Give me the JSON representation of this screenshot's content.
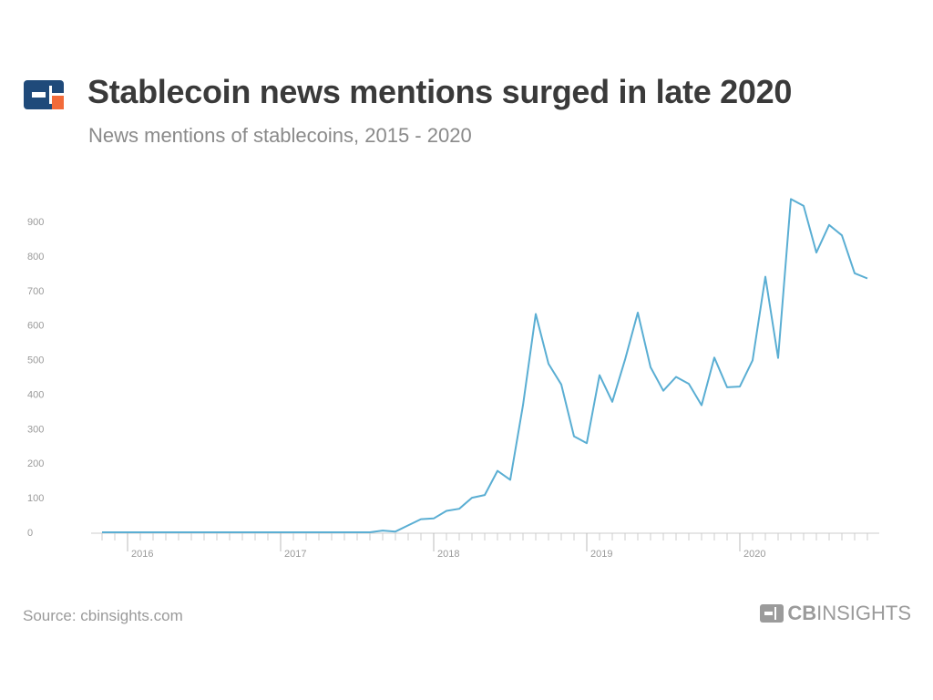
{
  "header": {
    "title": "Stablecoin news mentions surged in late 2020",
    "subtitle": "News mentions of stablecoins, 2015 - 2020",
    "logo_icon": "cb-insights-logo-icon",
    "logo_colors": {
      "primary": "#1f4a7a",
      "accent": "#f26b3a"
    }
  },
  "footer": {
    "source": "Source: cbinsights.com",
    "brand_cb": "CB",
    "brand_insights": "INSIGHTS"
  },
  "chart_data": {
    "type": "line",
    "title": "Stablecoin news mentions surged in late 2020",
    "subtitle": "News mentions of stablecoins, 2015 - 2020",
    "xlabel": "",
    "ylabel": "",
    "ylim": [
      0,
      950
    ],
    "yticks": [
      0,
      100,
      200,
      300,
      400,
      500,
      600,
      700,
      800,
      900
    ],
    "xlim": [
      "2015-11",
      "2020-11"
    ],
    "xtick_labels": [
      {
        "label": "2016",
        "x": "2016-01"
      },
      {
        "label": "2017",
        "x": "2017-01"
      },
      {
        "label": "2018",
        "x": "2018-01"
      },
      {
        "label": "2019",
        "x": "2019-01"
      },
      {
        "label": "2020",
        "x": "2020-01"
      }
    ],
    "grid": false,
    "color": "#5aaed3",
    "series": [
      {
        "x": [
          "2015-11",
          "2015-12",
          "2016-01",
          "2016-02",
          "2016-03",
          "2016-04",
          "2016-05",
          "2016-06",
          "2016-07",
          "2016-08",
          "2016-09",
          "2016-10",
          "2016-11",
          "2016-12",
          "2017-01",
          "2017-02",
          "2017-03",
          "2017-04",
          "2017-05",
          "2017-06",
          "2017-07",
          "2017-08",
          "2017-09",
          "2017-10",
          "2017-11",
          "2017-12",
          "2018-01",
          "2018-02",
          "2018-03",
          "2018-04",
          "2018-05",
          "2018-06",
          "2018-07",
          "2018-08",
          "2018-09",
          "2018-10",
          "2018-11",
          "2018-12",
          "2019-01",
          "2019-02",
          "2019-03",
          "2019-04",
          "2019-05",
          "2019-06",
          "2019-07",
          "2019-08",
          "2019-09",
          "2019-10",
          "2019-11",
          "2019-12",
          "2020-01",
          "2020-02",
          "2020-03",
          "2020-04",
          "2020-05",
          "2020-06",
          "2020-07",
          "2020-08",
          "2020-09",
          "2020-10",
          "2020-11"
        ],
        "values": [
          0,
          0,
          0,
          0,
          0,
          0,
          0,
          0,
          0,
          0,
          0,
          0,
          0,
          0,
          0,
          0,
          0,
          0,
          0,
          0,
          0,
          0,
          5,
          2,
          20,
          38,
          40,
          62,
          68,
          100,
          108,
          178,
          152,
          368,
          632,
          488,
          428,
          278,
          258,
          455,
          378,
          500,
          636,
          478,
          410,
          450,
          430,
          368,
          506,
          420,
          422,
          498,
          740,
          505,
          965,
          945,
          810,
          890,
          860,
          750,
          735
        ]
      }
    ]
  }
}
